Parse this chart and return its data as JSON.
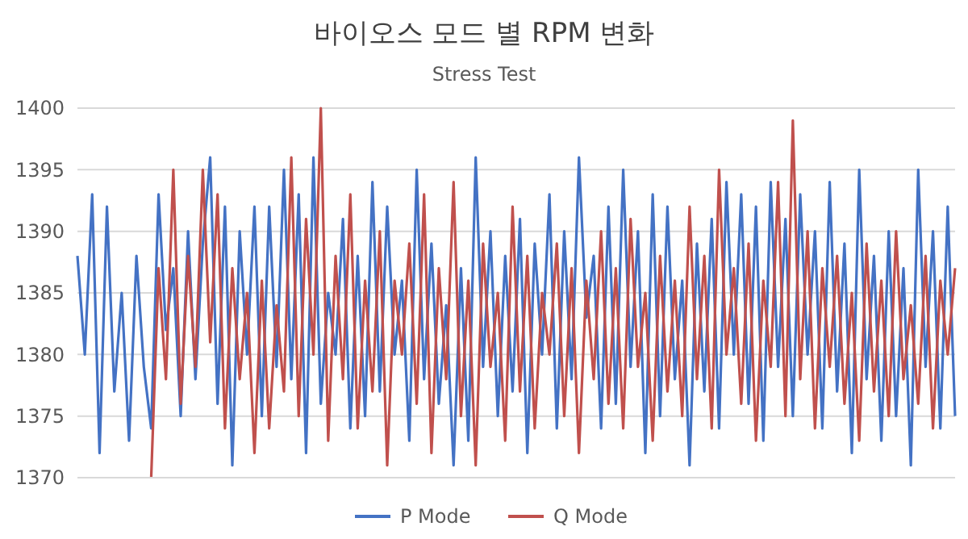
{
  "chart_data": {
    "type": "line",
    "title": "바이오스 모드 별 RPM 변화",
    "subtitle": "Stress Test",
    "categories": [
      null,
      null,
      null,
      null,
      null,
      null,
      null,
      null,
      null,
      null,
      null,
      null,
      null,
      null,
      null,
      null,
      null,
      null,
      null,
      null,
      null,
      null,
      null,
      null,
      null,
      null,
      null,
      null,
      null,
      null,
      null,
      null,
      null,
      null,
      null,
      null,
      null,
      null,
      null,
      null,
      null,
      null,
      null,
      null,
      null,
      null,
      null,
      null,
      null,
      null,
      null,
      null,
      null,
      null,
      null,
      null,
      null,
      null,
      null,
      null,
      null,
      null,
      null,
      null,
      null,
      null,
      null,
      null,
      null,
      null,
      null,
      null,
      null,
      null,
      null,
      null,
      null,
      null,
      null,
      null,
      null,
      null,
      null,
      null,
      null,
      null,
      null,
      null,
      null,
      null,
      null,
      null,
      null,
      null,
      null,
      null,
      null,
      null,
      null,
      null,
      null,
      null,
      null,
      null,
      null,
      null,
      null,
      null,
      null,
      null,
      null,
      null,
      null,
      null,
      null,
      null,
      null,
      null,
      null,
      null
    ],
    "series": [
      {
        "name": "P Mode",
        "color": "#4472c4",
        "values": [
          1388,
          1380,
          1393,
          1372,
          1392,
          1377,
          1385,
          1373,
          1388,
          1379,
          1374,
          1393,
          1382,
          1387,
          1375,
          1390,
          1378,
          1389,
          1396,
          1376,
          1392,
          1371,
          1390,
          1380,
          1392,
          1375,
          1392,
          1379,
          1395,
          1378,
          1393,
          1372,
          1396,
          1376,
          1385,
          1380,
          1391,
          1374,
          1388,
          1375,
          1394,
          1377,
          1392,
          1380,
          1386,
          1373,
          1395,
          1378,
          1389,
          1376,
          1384,
          1371,
          1387,
          1373,
          1396,
          1379,
          1390,
          1375,
          1388,
          1377,
          1391,
          1372,
          1389,
          1380,
          1393,
          1374,
          1390,
          1378,
          1396,
          1383,
          1388,
          1374,
          1392,
          1376,
          1395,
          1379,
          1390,
          1372,
          1393,
          1375,
          1392,
          1378,
          1386,
          1371,
          1389,
          1377,
          1391,
          1374,
          1394,
          1380,
          1393,
          1376,
          1392,
          1373,
          1394,
          1379,
          1391,
          1375,
          1393,
          1380,
          1390,
          1374,
          1394,
          1377,
          1389,
          1372,
          1395,
          1378,
          1388,
          1373,
          1390,
          1375,
          1387,
          1371,
          1395,
          1379,
          1390,
          1374,
          1392,
          1375
        ]
      },
      {
        "name": "Q Mode",
        "color": "#c0504d",
        "values": [
          null,
          null,
          null,
          null,
          null,
          null,
          null,
          null,
          null,
          null,
          1370,
          1387,
          1378,
          1395,
          1376,
          1388,
          1379,
          1395,
          1381,
          1393,
          1374,
          1387,
          1378,
          1385,
          1372,
          1386,
          1374,
          1384,
          1377,
          1396,
          1375,
          1391,
          1380,
          1400,
          1373,
          1388,
          1378,
          1393,
          1374,
          1386,
          1377,
          1390,
          1371,
          1386,
          1380,
          1389,
          1376,
          1393,
          1372,
          1387,
          1378,
          1394,
          1375,
          1386,
          1371,
          1389,
          1379,
          1385,
          1373,
          1392,
          1377,
          1388,
          1374,
          1385,
          1380,
          1389,
          1375,
          1387,
          1372,
          1386,
          1378,
          1390,
          1376,
          1387,
          1374,
          1391,
          1379,
          1385,
          1373,
          1388,
          1377,
          1386,
          1375,
          1392,
          1378,
          1388,
          1374,
          1395,
          1380,
          1387,
          1376,
          1389,
          1373,
          1386,
          1379,
          1394,
          1375,
          1399,
          1378,
          1390,
          1374,
          1387,
          1379,
          1388,
          1376,
          1385,
          1373,
          1389,
          1377,
          1386,
          1375,
          1390,
          1378,
          1384,
          1376,
          1388,
          1374,
          1386,
          1380,
          1387
        ]
      }
    ],
    "ylim": [
      1370,
      1400
    ],
    "yticks": [
      1370,
      1375,
      1380,
      1385,
      1390,
      1395,
      1400
    ],
    "grid": "y",
    "legend": "bottom",
    "line_style": "solid",
    "marker": "none"
  }
}
